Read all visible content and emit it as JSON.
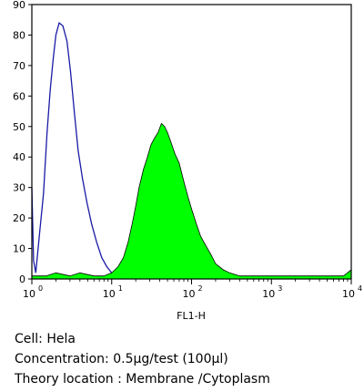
{
  "chart_data": {
    "type": "area",
    "title": "",
    "xlabel": "FL1-H",
    "ylabel": "",
    "x_scale": "log",
    "xlim": [
      1,
      10000
    ],
    "ylim": [
      0,
      90
    ],
    "x_ticks": [
      {
        "base": "10",
        "exp": "0"
      },
      {
        "base": "10",
        "exp": "1"
      },
      {
        "base": "10",
        "exp": "2"
      },
      {
        "base": "10",
        "exp": "3"
      },
      {
        "base": "10",
        "exp": "4"
      }
    ],
    "x_tick_values": [
      1,
      10,
      100,
      1000,
      10000
    ],
    "y_ticks": [
      "0",
      "10",
      "20",
      "30",
      "40",
      "50",
      "60",
      "70",
      "80",
      "90"
    ],
    "y_tick_values": [
      0,
      10,
      20,
      30,
      40,
      50,
      60,
      70,
      80,
      90
    ],
    "grid": false,
    "legend": "none",
    "series": [
      {
        "style": "outline",
        "color": "#1a1aa6",
        "points": [
          [
            1.0,
            30
          ],
          [
            1.05,
            6
          ],
          [
            1.12,
            2
          ],
          [
            1.25,
            15
          ],
          [
            1.4,
            28
          ],
          [
            1.55,
            48
          ],
          [
            1.7,
            62
          ],
          [
            1.85,
            72
          ],
          [
            2.0,
            80
          ],
          [
            2.2,
            84
          ],
          [
            2.45,
            83
          ],
          [
            2.75,
            78
          ],
          [
            3.05,
            68
          ],
          [
            3.4,
            55
          ],
          [
            3.8,
            42
          ],
          [
            4.3,
            33
          ],
          [
            4.9,
            25
          ],
          [
            5.6,
            18
          ],
          [
            6.5,
            12
          ],
          [
            7.5,
            7
          ],
          [
            8.7,
            4
          ],
          [
            10,
            2
          ],
          [
            11.5,
            1
          ],
          [
            13,
            0.5
          ],
          [
            15,
            0
          ]
        ]
      },
      {
        "style": "filled",
        "color": "#00ff00",
        "points": [
          [
            1.0,
            1
          ],
          [
            1.5,
            1
          ],
          [
            2,
            2
          ],
          [
            3,
            1
          ],
          [
            4,
            2
          ],
          [
            6,
            1
          ],
          [
            8,
            1
          ],
          [
            10,
            2
          ],
          [
            12,
            4
          ],
          [
            14,
            7
          ],
          [
            16,
            12
          ],
          [
            18,
            18
          ],
          [
            20,
            24
          ],
          [
            22,
            30
          ],
          [
            25,
            36
          ],
          [
            28,
            40
          ],
          [
            31,
            44
          ],
          [
            34,
            46
          ],
          [
            38,
            48
          ],
          [
            42,
            51
          ],
          [
            46,
            50
          ],
          [
            50,
            48
          ],
          [
            55,
            45
          ],
          [
            62,
            41
          ],
          [
            70,
            38
          ],
          [
            80,
            32
          ],
          [
            90,
            27
          ],
          [
            100,
            23
          ],
          [
            115,
            18
          ],
          [
            130,
            14
          ],
          [
            150,
            11
          ],
          [
            175,
            8
          ],
          [
            200,
            5
          ],
          [
            250,
            3
          ],
          [
            300,
            2
          ],
          [
            400,
            1
          ],
          [
            600,
            1
          ],
          [
            1000,
            1
          ],
          [
            2000,
            1
          ],
          [
            4000,
            1
          ],
          [
            8000,
            1
          ],
          [
            10000,
            3
          ]
        ]
      }
    ]
  },
  "caption": {
    "cell": "Cell: Hela",
    "concentration": "Concentration: 0.5µg/test (100µl)",
    "theory": "Theory location : Membrane /Cytoplasm"
  }
}
